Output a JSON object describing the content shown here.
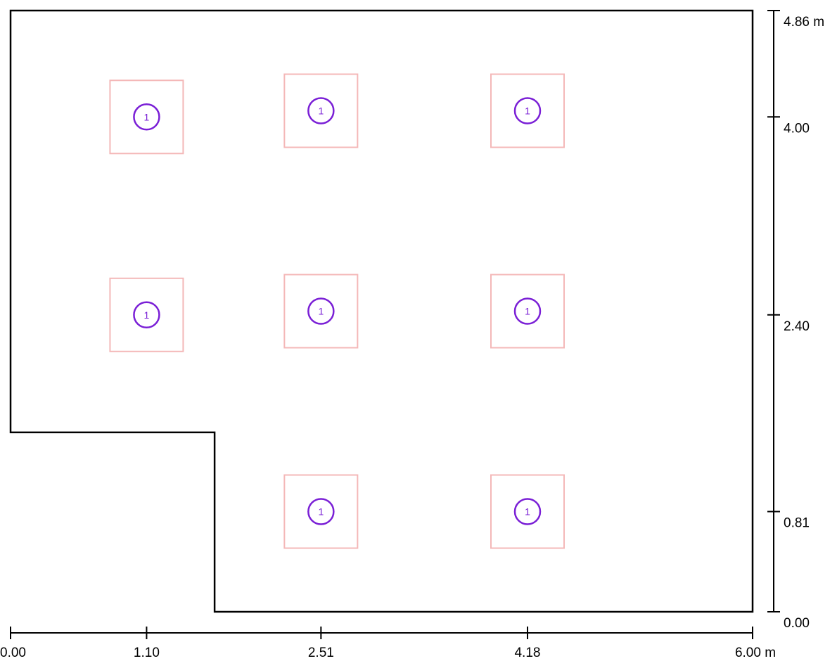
{
  "room": {
    "outline_points_m": [
      [
        0,
        1.45
      ],
      [
        1.65,
        1.45
      ],
      [
        1.65,
        0
      ],
      [
        6.0,
        0
      ],
      [
        6.0,
        4.86
      ],
      [
        0,
        4.86
      ]
    ]
  },
  "luminaires": [
    {
      "id": "lum-1",
      "x": 1.1,
      "y": 4.0,
      "label": "1"
    },
    {
      "id": "lum-2",
      "x": 2.51,
      "y": 4.05,
      "label": "1"
    },
    {
      "id": "lum-3",
      "x": 4.18,
      "y": 4.05,
      "label": "1"
    },
    {
      "id": "lum-4",
      "x": 1.1,
      "y": 2.4,
      "label": "1"
    },
    {
      "id": "lum-5",
      "x": 2.51,
      "y": 2.43,
      "label": "1"
    },
    {
      "id": "lum-6",
      "x": 4.18,
      "y": 2.43,
      "label": "1"
    },
    {
      "id": "lum-7",
      "x": 2.51,
      "y": 0.81,
      "label": "1"
    },
    {
      "id": "lum-8",
      "x": 4.18,
      "y": 0.81,
      "label": "1"
    }
  ],
  "x_axis": {
    "ticks": [
      {
        "value": 0.0,
        "label": "0.00"
      },
      {
        "value": 1.1,
        "label": "1.10"
      },
      {
        "value": 2.51,
        "label": "2.51"
      },
      {
        "value": 4.18,
        "label": "4.18"
      },
      {
        "value": 6.0,
        "label": "6.00 m"
      }
    ]
  },
  "y_axis": {
    "ticks": [
      {
        "value": 0.0,
        "label": "0.00"
      },
      {
        "value": 0.81,
        "label": "0.81"
      },
      {
        "value": 2.4,
        "label": "2.40"
      },
      {
        "value": 4.0,
        "label": "4.00"
      },
      {
        "value": 4.86,
        "label": "4.86 m"
      }
    ]
  },
  "colors": {
    "wall": "#000000",
    "fixture_box": "#f4b8b8",
    "fixture_symbol": "#7a1fd6"
  }
}
